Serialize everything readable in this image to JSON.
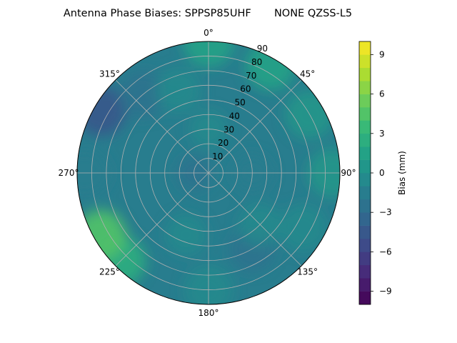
{
  "chart_data": {
    "type": "heatmap",
    "projection": "polar",
    "title": "Antenna Phase Biases: SPPSP85UHF       NONE QZSS-L5",
    "theta_zero_location": "north",
    "theta_direction": "clockwise",
    "angle_tick_labels": [
      "0°",
      "45°",
      "90°",
      "135°",
      "180°",
      "225°",
      "270°",
      "315°"
    ],
    "angle_ticks_deg": [
      0,
      45,
      90,
      135,
      180,
      225,
      270,
      315
    ],
    "radial_ticks": [
      10,
      20,
      30,
      40,
      50,
      60,
      70,
      80,
      90
    ],
    "radial_tick_labels": [
      "10",
      "20",
      "30",
      "40",
      "50",
      "60",
      "70",
      "80",
      "90"
    ],
    "rlim": [
      0,
      90
    ],
    "grid": true,
    "colormap": "viridis",
    "colorbar": {
      "label": "Bias (mm)",
      "vmin": -10,
      "vmax": 10,
      "ticks": [
        -9,
        -6,
        -3,
        0,
        3,
        6,
        9
      ],
      "tick_labels": [
        "−9",
        "−6",
        "−3",
        "0",
        "3",
        "6",
        "9"
      ],
      "levels": 20
    },
    "field_samples": [
      {
        "azimuth": 0,
        "zenith": 90,
        "bias": 1.5
      },
      {
        "azimuth": 30,
        "zenith": 85,
        "bias": 1.0
      },
      {
        "azimuth": 60,
        "zenith": 80,
        "bias": 0.5
      },
      {
        "azimuth": 90,
        "zenith": 85,
        "bias": 0.5
      },
      {
        "azimuth": 120,
        "zenith": 75,
        "bias": -1.0
      },
      {
        "azimuth": 150,
        "zenith": 60,
        "bias": -2.5
      },
      {
        "azimuth": 180,
        "zenith": 80,
        "bias": -1.0
      },
      {
        "azimuth": 225,
        "zenith": 85,
        "bias": 2.0
      },
      {
        "azimuth": 240,
        "zenith": 85,
        "bias": 4.5
      },
      {
        "azimuth": 270,
        "zenith": 85,
        "bias": -1.5
      },
      {
        "azimuth": 300,
        "zenith": 85,
        "bias": -4.5
      },
      {
        "azimuth": 320,
        "zenith": 70,
        "bias": -2.5
      },
      {
        "azimuth": 340,
        "zenith": 60,
        "bias": -1.0
      },
      {
        "azimuth": 0,
        "zenith": 30,
        "bias": -1.0
      },
      {
        "azimuth": 270,
        "zenith": 10,
        "bias": -2.5
      },
      {
        "azimuth": 90,
        "zenith": 30,
        "bias": -1.5
      },
      {
        "azimuth": 135,
        "zenith": 50,
        "bias": -1.0
      },
      {
        "azimuth": 200,
        "zenith": 45,
        "bias": -0.5
      }
    ]
  }
}
